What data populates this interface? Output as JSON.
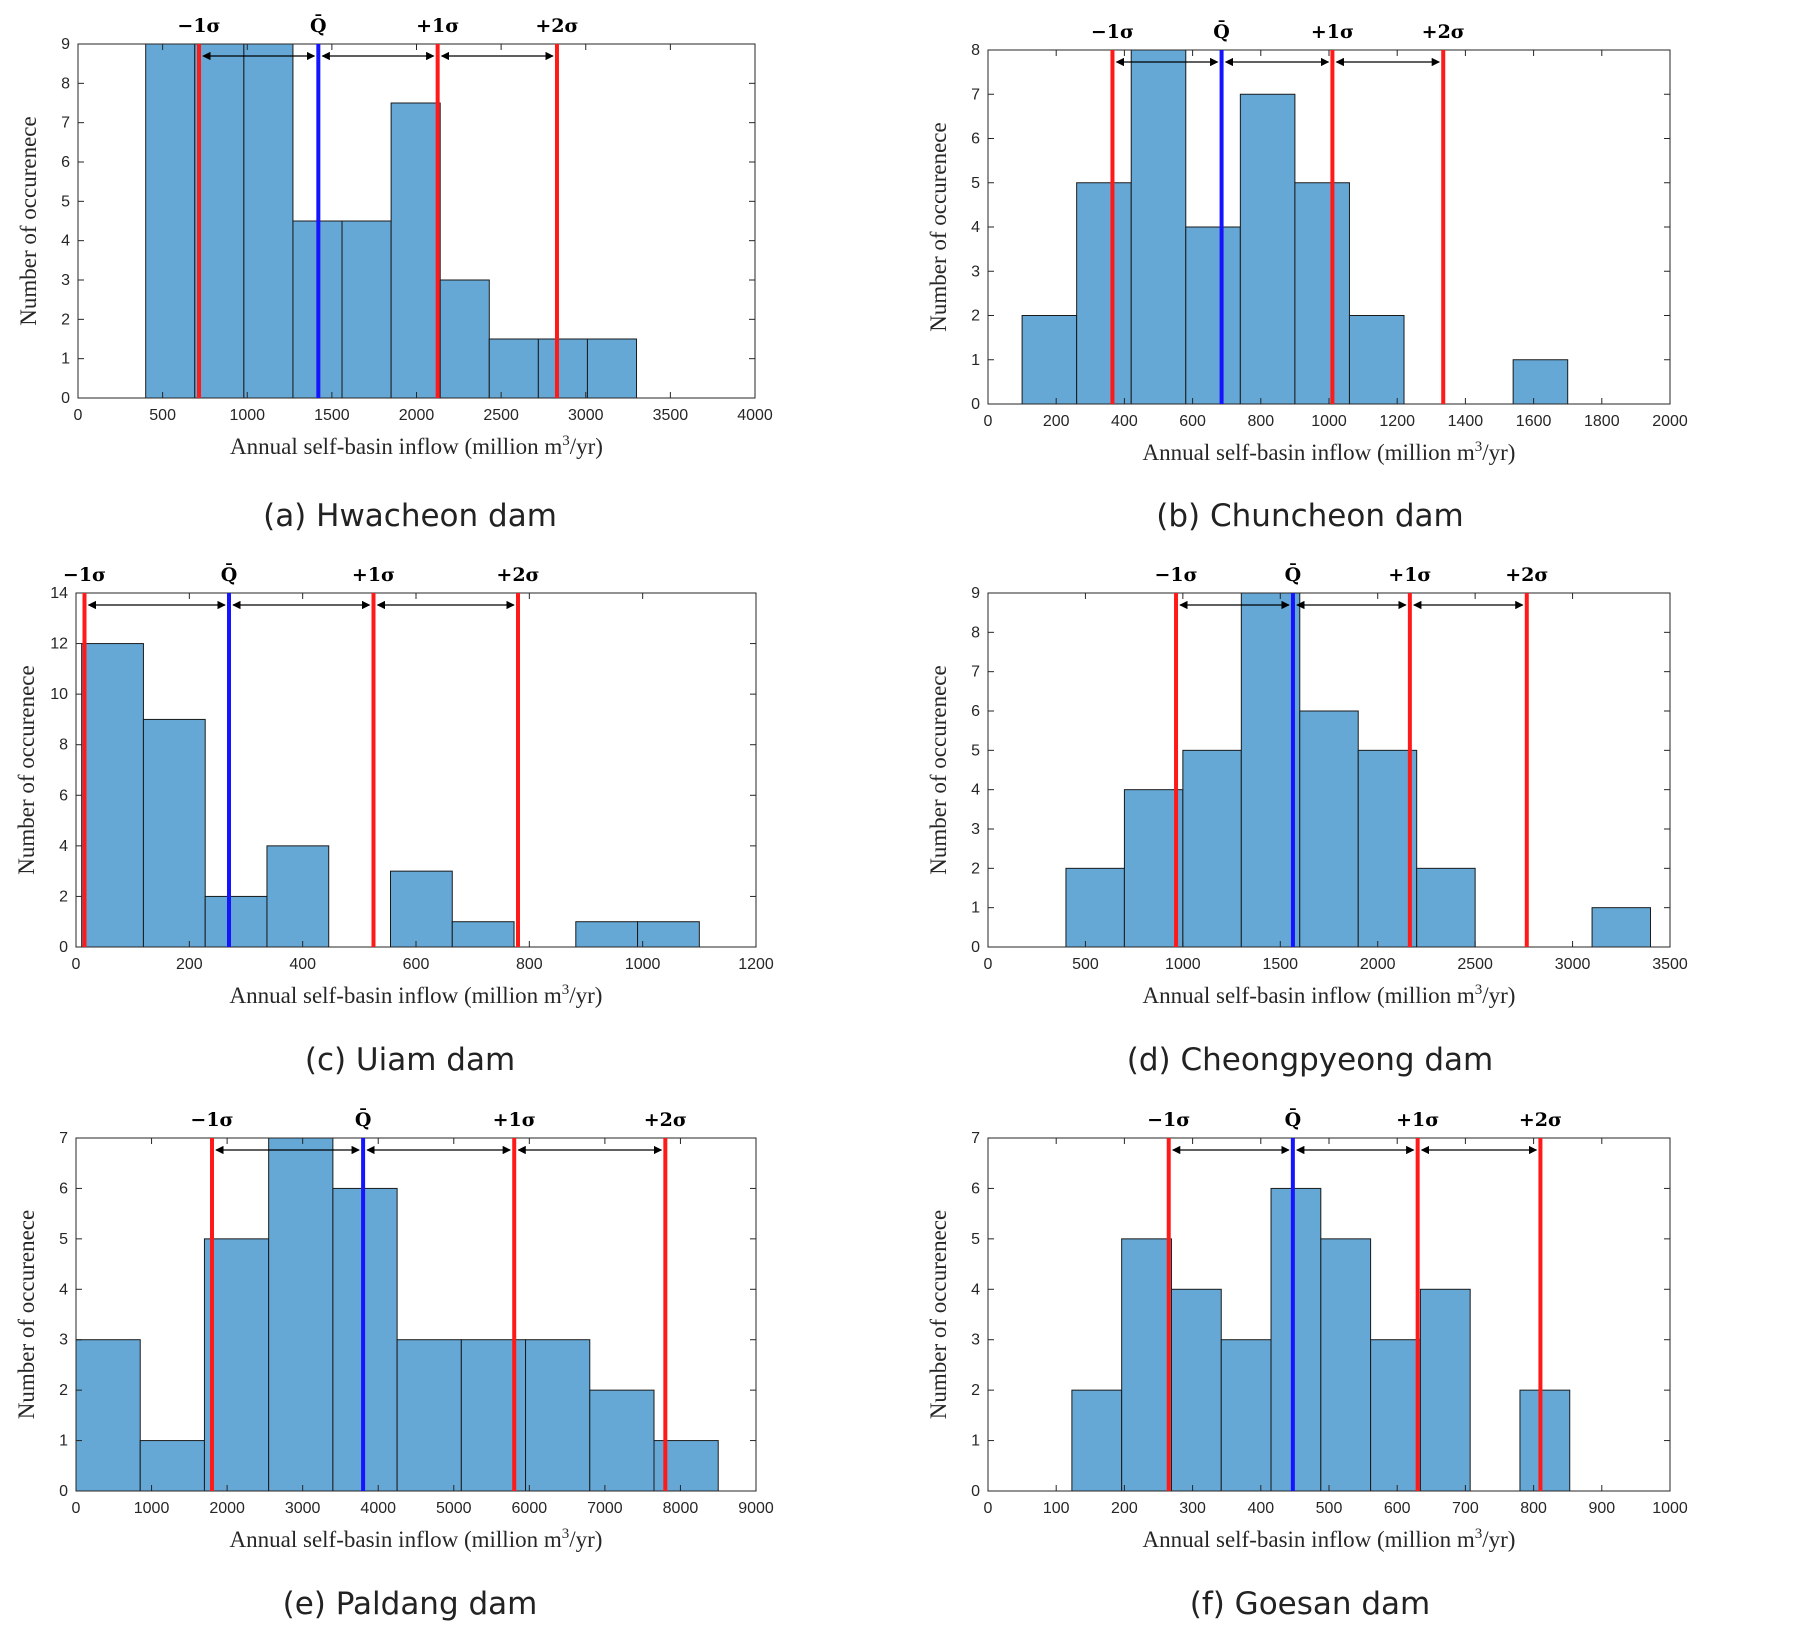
{
  "colors": {
    "bar_fill": "#65A8D6",
    "bar_edge": "#1a1a1a",
    "sigma_line": "#FF1A1A",
    "mean_line": "#1414FF",
    "arrow": "#000000"
  },
  "chart_data": [
    {
      "type": "bar",
      "caption": "(a) Hwacheon dam",
      "xlabel": "Annual self-basin inflow (million m",
      "xlabel_sup": "3",
      "xlabel_end": "/yr)",
      "ylabel": "Number of occurenece",
      "xlim": [
        0,
        4000
      ],
      "ylim": [
        0,
        9
      ],
      "xticks": [
        0,
        500,
        1000,
        1500,
        2000,
        2500,
        3000,
        3500,
        4000
      ],
      "yticks": [
        0,
        1,
        2,
        3,
        4,
        5,
        6,
        7,
        8,
        9
      ],
      "bins": [
        [
          400,
          690,
          9
        ],
        [
          690,
          980,
          9
        ],
        [
          980,
          1270,
          9
        ],
        [
          1270,
          1560,
          4.5
        ],
        [
          1560,
          1850,
          4.5
        ],
        [
          1850,
          2140,
          7.5
        ],
        [
          2140,
          2430,
          3
        ],
        [
          2430,
          2720,
          1.5
        ],
        [
          2720,
          3010,
          1.5
        ],
        [
          3010,
          3300,
          1.5
        ]
      ],
      "mean": 1420,
      "minus1": 715,
      "plus1": 2125,
      "plus2": 2830,
      "labels": {
        "mean": "Q̄",
        "minus1": "−1σ",
        "plus1": "+1σ",
        "plus2": "+2σ"
      }
    },
    {
      "type": "bar",
      "caption": "(b) Chuncheon dam",
      "xlabel": "Annual self-basin inflow (million m",
      "xlabel_sup": "3",
      "xlabel_end": "/yr)",
      "ylabel": "Number of occurenece",
      "xlim": [
        0,
        2000
      ],
      "ylim": [
        0,
        8
      ],
      "xticks": [
        0,
        200,
        400,
        600,
        800,
        1000,
        1200,
        1400,
        1600,
        1800,
        2000
      ],
      "yticks": [
        0,
        1,
        2,
        3,
        4,
        5,
        6,
        7,
        8
      ],
      "bins": [
        [
          100,
          260,
          2
        ],
        [
          260,
          420,
          5
        ],
        [
          420,
          580,
          8
        ],
        [
          580,
          740,
          4
        ],
        [
          740,
          900,
          7
        ],
        [
          900,
          1060,
          5
        ],
        [
          1060,
          1220,
          2
        ],
        [
          1220,
          1380,
          0
        ],
        [
          1380,
          1540,
          0
        ],
        [
          1540,
          1700,
          1
        ]
      ],
      "mean": 685,
      "minus1": 365,
      "plus1": 1010,
      "plus2": 1335,
      "labels": {
        "mean": "Q̄",
        "minus1": "−1σ",
        "plus1": "+1σ",
        "plus2": "+2σ"
      }
    },
    {
      "type": "bar",
      "caption": "(c) Uiam dam",
      "xlabel": "Annual self-basin inflow (million m",
      "xlabel_sup": "3",
      "xlabel_end": "/yr)",
      "ylabel": "Number of occurenece",
      "xlim": [
        0,
        1200
      ],
      "ylim": [
        0,
        14
      ],
      "xticks": [
        0,
        200,
        400,
        600,
        800,
        1000,
        1200
      ],
      "yticks": [
        0,
        2,
        4,
        6,
        8,
        10,
        12,
        14
      ],
      "bins": [
        [
          10,
          119,
          12
        ],
        [
          119,
          228,
          9
        ],
        [
          228,
          337,
          2
        ],
        [
          337,
          446,
          4
        ],
        [
          446,
          555,
          0
        ],
        [
          555,
          664,
          3
        ],
        [
          664,
          773,
          1
        ],
        [
          773,
          882,
          0
        ],
        [
          882,
          991,
          1
        ],
        [
          991,
          1100,
          1
        ]
      ],
      "mean": 270,
      "minus1": 15,
      "plus1": 525,
      "plus2": 780,
      "labels": {
        "mean": "Q̄",
        "minus1": "−1σ",
        "plus1": "+1σ",
        "plus2": "+2σ"
      }
    },
    {
      "type": "bar",
      "caption": "(d) Cheongpyeong dam",
      "xlabel": "Annual self-basin inflow (million m",
      "xlabel_sup": "3",
      "xlabel_end": "/yr)",
      "ylabel": "Number of occurenece",
      "xlim": [
        0,
        3500
      ],
      "ylim": [
        0,
        9
      ],
      "xticks": [
        0,
        500,
        1000,
        1500,
        2000,
        2500,
        3000,
        3500
      ],
      "yticks": [
        0,
        1,
        2,
        3,
        4,
        5,
        6,
        7,
        8,
        9
      ],
      "bins": [
        [
          400,
          700,
          2
        ],
        [
          700,
          1000,
          4
        ],
        [
          1000,
          1300,
          5
        ],
        [
          1300,
          1600,
          9
        ],
        [
          1600,
          1900,
          6
        ],
        [
          1900,
          2200,
          5
        ],
        [
          2200,
          2500,
          2
        ],
        [
          2500,
          2800,
          0
        ],
        [
          2800,
          3100,
          0
        ],
        [
          3100,
          3400,
          1
        ]
      ],
      "mean": 1565,
      "minus1": 965,
      "plus1": 2165,
      "plus2": 2765,
      "labels": {
        "mean": "Q̄",
        "minus1": "−1σ",
        "plus1": "+1σ",
        "plus2": "+2σ"
      }
    },
    {
      "type": "bar",
      "caption": "(e) Paldang dam",
      "xlabel": "Annual self-basin inflow (million m",
      "xlabel_sup": "3",
      "xlabel_end": "/yr)",
      "ylabel": "Number of occurenece",
      "xlim": [
        0,
        9000
      ],
      "ylim": [
        0,
        7
      ],
      "xticks": [
        0,
        1000,
        2000,
        3000,
        4000,
        5000,
        6000,
        7000,
        8000,
        9000
      ],
      "yticks": [
        0,
        1,
        2,
        3,
        4,
        5,
        6,
        7
      ],
      "bins": [
        [
          0,
          850,
          3
        ],
        [
          850,
          1700,
          1
        ],
        [
          1700,
          2550,
          5
        ],
        [
          2550,
          3400,
          7
        ],
        [
          3400,
          4250,
          6
        ],
        [
          4250,
          5100,
          3
        ],
        [
          5100,
          5950,
          3
        ],
        [
          5950,
          6800,
          3
        ],
        [
          6800,
          7650,
          2
        ],
        [
          7650,
          8500,
          1
        ]
      ],
      "mean": 3800,
      "minus1": 1800,
      "plus1": 5800,
      "plus2": 7800,
      "labels": {
        "mean": "Q̄",
        "minus1": "−1σ",
        "plus1": "+1σ",
        "plus2": "+2σ"
      }
    },
    {
      "type": "bar",
      "caption": "(f) Goesan dam",
      "xlabel": "Annual self-basin inflow (million m",
      "xlabel_sup": "3",
      "xlabel_end": "/yr)",
      "ylabel": "Number of occurenece",
      "xlim": [
        0,
        1000
      ],
      "ylim": [
        0,
        7
      ],
      "xticks": [
        0,
        100,
        200,
        300,
        400,
        500,
        600,
        700,
        800,
        900,
        1000
      ],
      "yticks": [
        0,
        1,
        2,
        3,
        4,
        5,
        6,
        7
      ],
      "bins": [
        [
          123,
          196,
          2
        ],
        [
          196,
          269,
          5
        ],
        [
          269,
          342,
          4
        ],
        [
          342,
          415,
          3
        ],
        [
          415,
          488,
          6
        ],
        [
          488,
          561,
          5
        ],
        [
          561,
          634,
          3
        ],
        [
          634,
          707,
          4
        ],
        [
          707,
          780,
          0
        ],
        [
          780,
          853,
          2
        ]
      ],
      "mean": 447,
      "minus1": 265,
      "plus1": 630,
      "plus2": 810,
      "labels": {
        "mean": "Q̄",
        "minus1": "−1σ",
        "plus1": "+1σ",
        "plus2": "+2σ"
      }
    }
  ]
}
